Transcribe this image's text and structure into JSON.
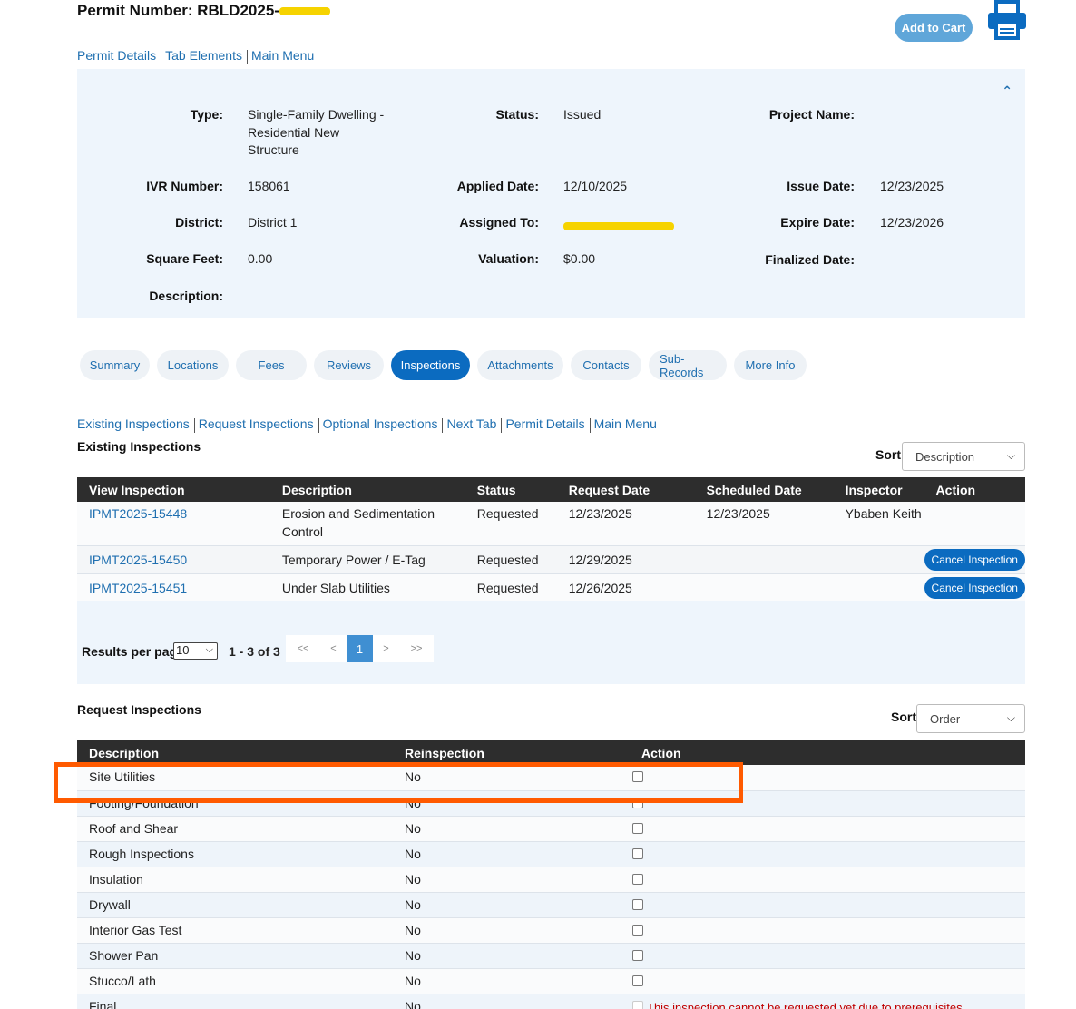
{
  "header": {
    "permit_label": "Permit Number: RBLD2025-",
    "add_to_cart": "Add to Cart",
    "print_icon": "printer-icon"
  },
  "top_links": [
    "Permit Details",
    "Tab Elements",
    "Main Menu"
  ],
  "details": {
    "type_label": "Type:",
    "type_value": "Single-Family Dwelling - Residential New Structure",
    "status_label": "Status:",
    "status_value": "Issued",
    "project_name_label": "Project Name:",
    "ivr_label": "IVR Number:",
    "ivr_value": "158061",
    "applied_label": "Applied Date:",
    "applied_value": "12/10/2025",
    "issue_label": "Issue Date:",
    "issue_value": "12/23/2025",
    "district_label": "District:",
    "district_value": "District 1",
    "assigned_label": "Assigned To:",
    "expire_label": "Expire Date:",
    "expire_value": "12/23/2026",
    "sqft_label": "Square Feet:",
    "sqft_value": "0.00",
    "valuation_label": "Valuation:",
    "valuation_value": "$0.00",
    "finalized_label": "Finalized Date:",
    "description_label": "Description:"
  },
  "tabs": [
    "Summary",
    "Locations",
    "Fees",
    "Reviews",
    "Inspections",
    "Attachments",
    "Contacts",
    "Sub-Records",
    "More Info"
  ],
  "active_tab": "Inspections",
  "sub_links": [
    "Existing Inspections",
    "Request Inspections",
    "Optional Inspections",
    "Next Tab",
    "Permit Details",
    "Main Menu"
  ],
  "existing": {
    "title": "Existing Inspections",
    "sort_label": "Sort",
    "sort_value": "Description",
    "columns": [
      "View Inspection",
      "Description",
      "Status",
      "Request Date",
      "Scheduled Date",
      "Inspector",
      "Action"
    ],
    "rows": [
      {
        "id": "IPMT2025-15448",
        "description": "Erosion and Sedimentation Control",
        "status": "Requested",
        "request_date": "12/23/2025",
        "scheduled_date": "12/23/2025",
        "inspector": "Ybaben Keith",
        "action": ""
      },
      {
        "id": "IPMT2025-15450",
        "description": "Temporary Power / E-Tag",
        "status": "Requested",
        "request_date": "12/29/2025",
        "scheduled_date": "",
        "inspector": "",
        "action": "Cancel Inspection"
      },
      {
        "id": "IPMT2025-15451",
        "description": "Under Slab Utilities",
        "status": "Requested",
        "request_date": "12/26/2025",
        "scheduled_date": "",
        "inspector": "",
        "action": "Cancel Inspection"
      }
    ]
  },
  "pager": {
    "results_label": "Results per page",
    "per_page": "10",
    "range": "1 - 3 of 3",
    "buttons": [
      "<<",
      "<",
      "1",
      ">",
      ">>"
    ],
    "current": "1"
  },
  "request": {
    "title": "Request Inspections",
    "sort_label": "Sort",
    "sort_value": "Order",
    "columns": [
      "Description",
      "Reinspection",
      "Action"
    ],
    "rows": [
      {
        "description": "Site Utilities",
        "reinspection": "No",
        "note": ""
      },
      {
        "description": "Footing/Foundation",
        "reinspection": "No",
        "note": ""
      },
      {
        "description": "Roof and Shear",
        "reinspection": "No",
        "note": ""
      },
      {
        "description": "Rough Inspections",
        "reinspection": "No",
        "note": ""
      },
      {
        "description": "Insulation",
        "reinspection": "No",
        "note": ""
      },
      {
        "description": "Drywall",
        "reinspection": "No",
        "note": ""
      },
      {
        "description": "Interior Gas Test",
        "reinspection": "No",
        "note": ""
      },
      {
        "description": "Shower Pan",
        "reinspection": "No",
        "note": ""
      },
      {
        "description": "Stucco/Lath",
        "reinspection": "No",
        "note": ""
      },
      {
        "description": "Final",
        "reinspection": "No",
        "note": "This inspection cannot be requested yet due to prerequisites."
      }
    ]
  },
  "colors": {
    "accent": "#0b6bc0",
    "link": "#1f6fb0",
    "panel_bg": "#eef5fc",
    "table_header": "#2d2d2d",
    "highlight": "#ff5a00",
    "redaction": "#f6d300",
    "error": "#c00000"
  }
}
